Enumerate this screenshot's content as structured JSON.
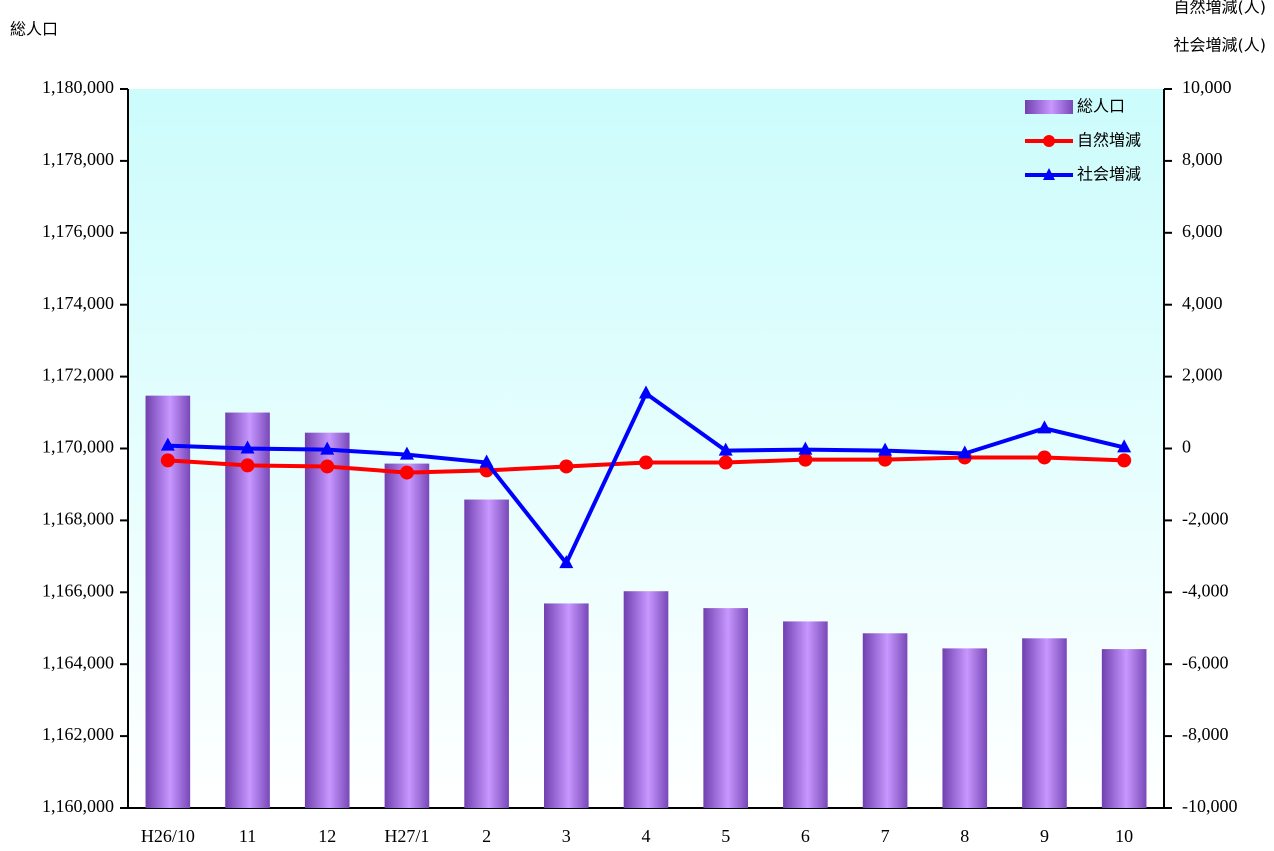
{
  "chart_data": {
    "type": "bar",
    "y_title": "総人口",
    "y2_titles": [
      "自然増減(人)",
      "社会増減(人)"
    ],
    "categories": [
      "H26/10",
      "11",
      "12",
      "H27/1",
      "2",
      "3",
      "4",
      "5",
      "6",
      "7",
      "8",
      "9",
      "10"
    ],
    "series": [
      {
        "name": "総人口",
        "type": "bar",
        "color": "#a470e8",
        "axis": "y",
        "values": [
          1171470,
          1171000,
          1170440,
          1169580,
          1168580,
          1165690,
          1166030,
          1165560,
          1165190,
          1164860,
          1164440,
          1164720,
          1164420
        ]
      },
      {
        "name": "自然増減",
        "type": "line",
        "marker": "circle",
        "color": "#ff0000",
        "axis": "y2",
        "values": [
          -330,
          -470,
          -500,
          -670,
          -610,
          -500,
          -390,
          -390,
          -310,
          -310,
          -250,
          -250,
          -330
        ]
      },
      {
        "name": "社会増減",
        "type": "line",
        "marker": "triangle",
        "color": "#0000ff",
        "axis": "y2",
        "values": [
          80,
          0,
          -30,
          -170,
          -390,
          -3190,
          1530,
          -60,
          -30,
          -60,
          -140,
          560,
          30
        ]
      }
    ],
    "ylim": [
      1160000,
      1180000
    ],
    "yticks": [
      {
        "value": 1160000,
        "label": "1,160,000"
      },
      {
        "value": 1162000,
        "label": "1,162,000"
      },
      {
        "value": 1164000,
        "label": "1,164,000"
      },
      {
        "value": 1166000,
        "label": "1,166,000"
      },
      {
        "value": 1168000,
        "label": "1,168,000"
      },
      {
        "value": 1170000,
        "label": "1,170,000"
      },
      {
        "value": 1172000,
        "label": "1,172,000"
      },
      {
        "value": 1174000,
        "label": "1,174,000"
      },
      {
        "value": 1176000,
        "label": "1,176,000"
      },
      {
        "value": 1178000,
        "label": "1,178,000"
      },
      {
        "value": 1180000,
        "label": "1,180,000"
      }
    ],
    "y2lim": [
      -10000,
      10000
    ],
    "y2ticks": [
      {
        "value": -10000,
        "label": "-10,000"
      },
      {
        "value": -8000,
        "label": "-8,000"
      },
      {
        "value": -6000,
        "label": "-6,000"
      },
      {
        "value": -4000,
        "label": "-4,000"
      },
      {
        "value": -2000,
        "label": "-2,000"
      },
      0,
      {
        "value": 2000,
        "label": "2,000"
      },
      {
        "value": 4000,
        "label": "4,000"
      },
      {
        "value": 6000,
        "label": "6,000"
      },
      {
        "value": 8000,
        "label": "8,000"
      },
      {
        "value": 10000,
        "label": "10,000"
      }
    ],
    "negative_tick_color": "#ff0000",
    "grid": false,
    "legend": "upper right"
  }
}
